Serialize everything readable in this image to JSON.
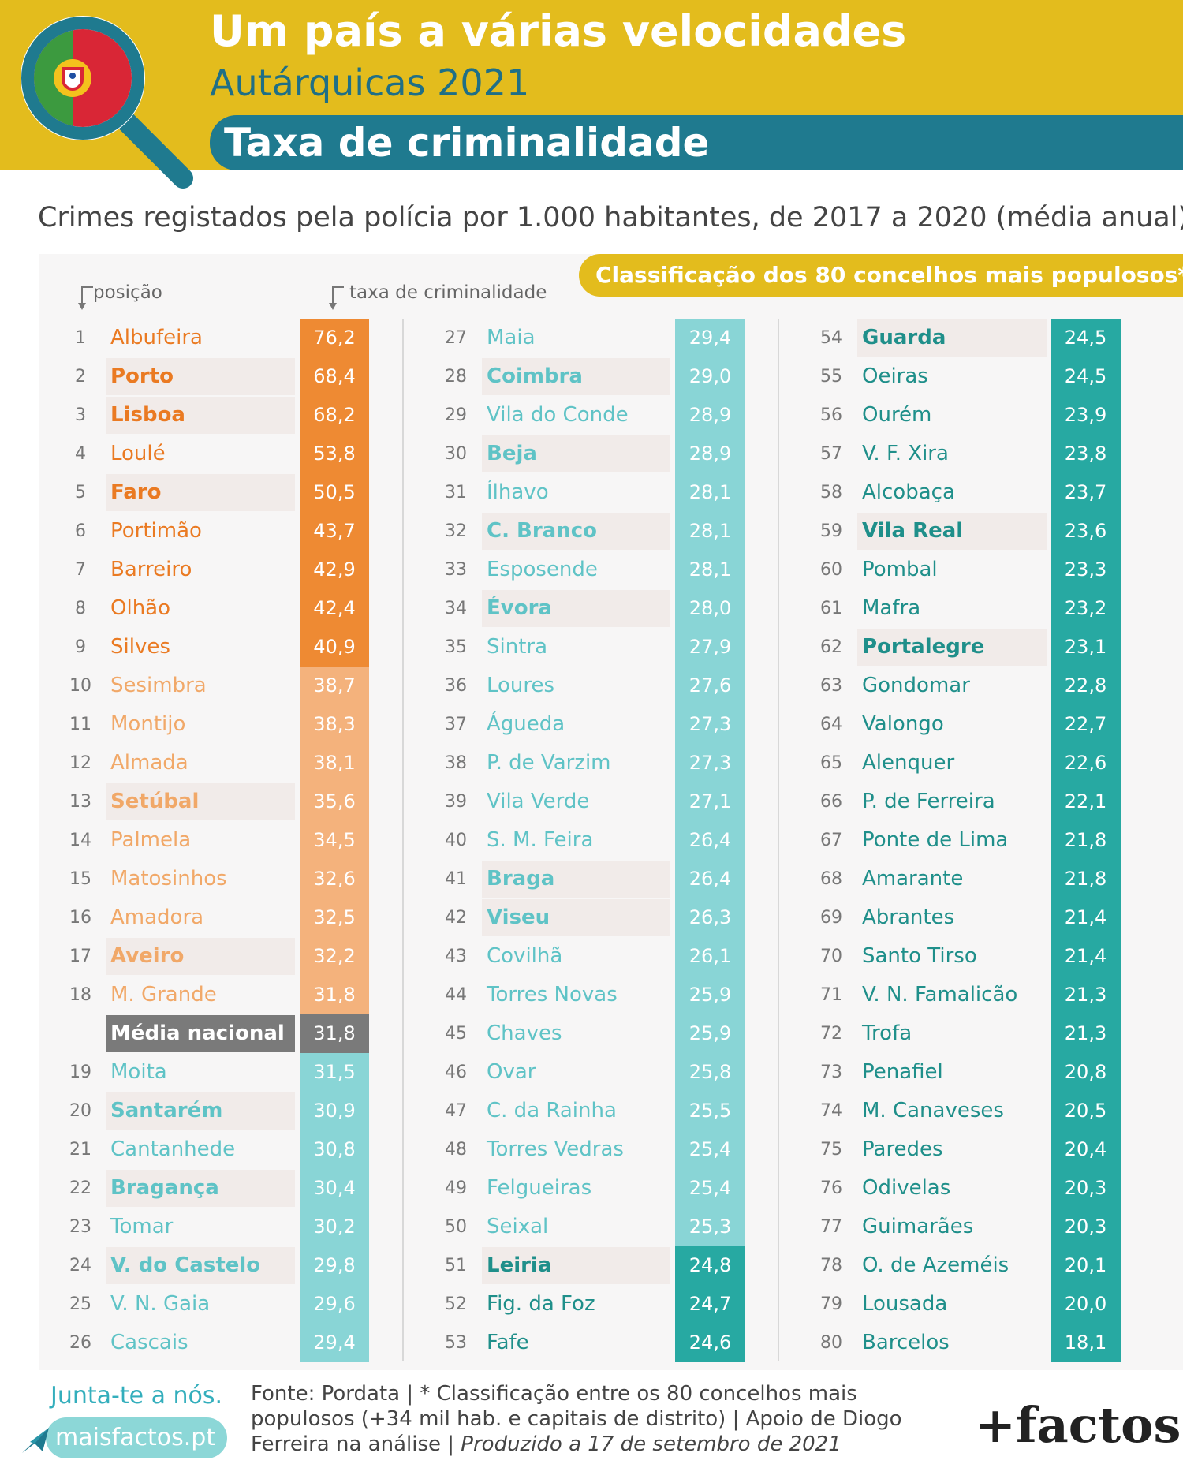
{
  "header": {
    "title": "Um país a várias velocidades",
    "subtitle": "Autárquicas 2021",
    "topic": "Taxa de criminalidade"
  },
  "description": "Crimes registados pela polícia por 1.000 habitantes, de 2017 a 2020 (média anual)",
  "ranking_badge": "Classificação dos 80 concelhos mais populosos*",
  "columns": {
    "position_label": "posição",
    "rate_label": "taxa de criminalidade"
  },
  "colors": {
    "header_yellow": "#e3bc1d",
    "topic_teal": "#1f7a8f",
    "orange_dark": "#ee8a33",
    "orange_light": "#f4b27c",
    "national_grey": "#7a7a7a",
    "teal_light": "#89d5d6",
    "teal_dark": "#27a9a2"
  },
  "chart_data": {
    "type": "table",
    "rows": [
      {
        "rank": "1",
        "name": "Albufeira",
        "value": "76,2",
        "district_capital": false,
        "tier": "orange-dark"
      },
      {
        "rank": "2",
        "name": "Porto",
        "value": "68,4",
        "district_capital": true,
        "tier": "orange-dark"
      },
      {
        "rank": "3",
        "name": "Lisboa",
        "value": "68,2",
        "district_capital": true,
        "tier": "orange-dark"
      },
      {
        "rank": "4",
        "name": "Loulé",
        "value": "53,8",
        "district_capital": false,
        "tier": "orange-dark"
      },
      {
        "rank": "5",
        "name": "Faro",
        "value": "50,5",
        "district_capital": true,
        "tier": "orange-dark"
      },
      {
        "rank": "6",
        "name": "Portimão",
        "value": "43,7",
        "district_capital": false,
        "tier": "orange-dark"
      },
      {
        "rank": "7",
        "name": "Barreiro",
        "value": "42,9",
        "district_capital": false,
        "tier": "orange-dark"
      },
      {
        "rank": "8",
        "name": "Olhão",
        "value": "42,4",
        "district_capital": false,
        "tier": "orange-dark"
      },
      {
        "rank": "9",
        "name": "Silves",
        "value": "40,9",
        "district_capital": false,
        "tier": "orange-dark"
      },
      {
        "rank": "10",
        "name": "Sesimbra",
        "value": "38,7",
        "district_capital": false,
        "tier": "orange-light"
      },
      {
        "rank": "11",
        "name": "Montijo",
        "value": "38,3",
        "district_capital": false,
        "tier": "orange-light"
      },
      {
        "rank": "12",
        "name": "Almada",
        "value": "38,1",
        "district_capital": false,
        "tier": "orange-light"
      },
      {
        "rank": "13",
        "name": "Setúbal",
        "value": "35,6",
        "district_capital": true,
        "tier": "orange-light"
      },
      {
        "rank": "14",
        "name": "Palmela",
        "value": "34,5",
        "district_capital": false,
        "tier": "orange-light"
      },
      {
        "rank": "15",
        "name": "Matosinhos",
        "value": "32,6",
        "district_capital": false,
        "tier": "orange-light"
      },
      {
        "rank": "16",
        "name": "Amadora",
        "value": "32,5",
        "district_capital": false,
        "tier": "orange-light"
      },
      {
        "rank": "17",
        "name": "Aveiro",
        "value": "32,2",
        "district_capital": true,
        "tier": "orange-light"
      },
      {
        "rank": "18",
        "name": "M. Grande",
        "value": "31,8",
        "district_capital": false,
        "tier": "orange-light"
      },
      {
        "rank": "",
        "name": "Média nacional",
        "value": "31,8",
        "district_capital": false,
        "tier": "national"
      },
      {
        "rank": "19",
        "name": "Moita",
        "value": "31,5",
        "district_capital": false,
        "tier": "teal-light"
      },
      {
        "rank": "20",
        "name": "Santarém",
        "value": "30,9",
        "district_capital": true,
        "tier": "teal-light"
      },
      {
        "rank": "21",
        "name": "Cantanhede",
        "value": "30,8",
        "district_capital": false,
        "tier": "teal-light"
      },
      {
        "rank": "22",
        "name": "Bragança",
        "value": "30,4",
        "district_capital": true,
        "tier": "teal-light"
      },
      {
        "rank": "23",
        "name": "Tomar",
        "value": "30,2",
        "district_capital": false,
        "tier": "teal-light"
      },
      {
        "rank": "24",
        "name": "V. do Castelo",
        "value": "29,8",
        "district_capital": true,
        "tier": "teal-light"
      },
      {
        "rank": "25",
        "name": "V. N. Gaia",
        "value": "29,6",
        "district_capital": false,
        "tier": "teal-light"
      },
      {
        "rank": "26",
        "name": "Cascais",
        "value": "29,4",
        "district_capital": false,
        "tier": "teal-light"
      },
      {
        "rank": "27",
        "name": "Maia",
        "value": "29,4",
        "district_capital": false,
        "tier": "teal-light"
      },
      {
        "rank": "28",
        "name": "Coimbra",
        "value": "29,0",
        "district_capital": true,
        "tier": "teal-light"
      },
      {
        "rank": "29",
        "name": "Vila do Conde",
        "value": "28,9",
        "district_capital": false,
        "tier": "teal-light"
      },
      {
        "rank": "30",
        "name": "Beja",
        "value": "28,9",
        "district_capital": true,
        "tier": "teal-light"
      },
      {
        "rank": "31",
        "name": "Ílhavo",
        "value": "28,1",
        "district_capital": false,
        "tier": "teal-light"
      },
      {
        "rank": "32",
        "name": "C. Branco",
        "value": "28,1",
        "district_capital": true,
        "tier": "teal-light"
      },
      {
        "rank": "33",
        "name": "Esposende",
        "value": "28,1",
        "district_capital": false,
        "tier": "teal-light"
      },
      {
        "rank": "34",
        "name": "Évora",
        "value": "28,0",
        "district_capital": true,
        "tier": "teal-light"
      },
      {
        "rank": "35",
        "name": "Sintra",
        "value": "27,9",
        "district_capital": false,
        "tier": "teal-light"
      },
      {
        "rank": "36",
        "name": "Loures",
        "value": "27,6",
        "district_capital": false,
        "tier": "teal-light"
      },
      {
        "rank": "37",
        "name": "Águeda",
        "value": "27,3",
        "district_capital": false,
        "tier": "teal-light"
      },
      {
        "rank": "38",
        "name": "P.  de Varzim",
        "value": "27,3",
        "district_capital": false,
        "tier": "teal-light"
      },
      {
        "rank": "39",
        "name": "Vila Verde",
        "value": "27,1",
        "district_capital": false,
        "tier": "teal-light"
      },
      {
        "rank": "40",
        "name": "S. M. Feira",
        "value": "26,4",
        "district_capital": false,
        "tier": "teal-light"
      },
      {
        "rank": "41",
        "name": "Braga",
        "value": "26,4",
        "district_capital": true,
        "tier": "teal-light"
      },
      {
        "rank": "42",
        "name": "Viseu",
        "value": "26,3",
        "district_capital": true,
        "tier": "teal-light"
      },
      {
        "rank": "43",
        "name": "Covilhã",
        "value": "26,1",
        "district_capital": false,
        "tier": "teal-light"
      },
      {
        "rank": "44",
        "name": "Torres Novas",
        "value": "25,9",
        "district_capital": false,
        "tier": "teal-light"
      },
      {
        "rank": "45",
        "name": "Chaves",
        "value": "25,9",
        "district_capital": false,
        "tier": "teal-light"
      },
      {
        "rank": "46",
        "name": "Ovar",
        "value": "25,8",
        "district_capital": false,
        "tier": "teal-light"
      },
      {
        "rank": "47",
        "name": "C. da Rainha",
        "value": "25,5",
        "district_capital": false,
        "tier": "teal-light"
      },
      {
        "rank": "48",
        "name": "Torres Vedras",
        "value": "25,4",
        "district_capital": false,
        "tier": "teal-light"
      },
      {
        "rank": "49",
        "name": "Felgueiras",
        "value": "25,4",
        "district_capital": false,
        "tier": "teal-light"
      },
      {
        "rank": "50",
        "name": "Seixal",
        "value": "25,3",
        "district_capital": false,
        "tier": "teal-light"
      },
      {
        "rank": "51",
        "name": "Leiria",
        "value": "24,8",
        "district_capital": true,
        "tier": "teal-dark"
      },
      {
        "rank": "52",
        "name": "Fig. da Foz",
        "value": "24,7",
        "district_capital": false,
        "tier": "teal-dark"
      },
      {
        "rank": "53",
        "name": "Fafe",
        "value": "24,6",
        "district_capital": false,
        "tier": "teal-dark"
      },
      {
        "rank": "54",
        "name": "Guarda",
        "value": "24,5",
        "district_capital": true,
        "tier": "teal-dark"
      },
      {
        "rank": "55",
        "name": "Oeiras",
        "value": "24,5",
        "district_capital": false,
        "tier": "teal-dark"
      },
      {
        "rank": "56",
        "name": "Ourém",
        "value": "23,9",
        "district_capital": false,
        "tier": "teal-dark"
      },
      {
        "rank": "57",
        "name": "V. F. Xira",
        "value": "23,8",
        "district_capital": false,
        "tier": "teal-dark"
      },
      {
        "rank": "58",
        "name": "Alcobaça",
        "value": "23,7",
        "district_capital": false,
        "tier": "teal-dark"
      },
      {
        "rank": "59",
        "name": "Vila Real",
        "value": "23,6",
        "district_capital": true,
        "tier": "teal-dark"
      },
      {
        "rank": "60",
        "name": "Pombal",
        "value": "23,3",
        "district_capital": false,
        "tier": "teal-dark"
      },
      {
        "rank": "61",
        "name": "Mafra",
        "value": "23,2",
        "district_capital": false,
        "tier": "teal-dark"
      },
      {
        "rank": "62",
        "name": "Portalegre",
        "value": "23,1",
        "district_capital": true,
        "tier": "teal-dark"
      },
      {
        "rank": "63",
        "name": "Gondomar",
        "value": "22,8",
        "district_capital": false,
        "tier": "teal-dark"
      },
      {
        "rank": "64",
        "name": "Valongo",
        "value": "22,7",
        "district_capital": false,
        "tier": "teal-dark"
      },
      {
        "rank": "65",
        "name": "Alenquer",
        "value": "22,6",
        "district_capital": false,
        "tier": "teal-dark"
      },
      {
        "rank": "66",
        "name": "P. de Ferreira",
        "value": "22,1",
        "district_capital": false,
        "tier": "teal-dark"
      },
      {
        "rank": "67",
        "name": "Ponte de Lima",
        "value": "21,8",
        "district_capital": false,
        "tier": "teal-dark"
      },
      {
        "rank": "68",
        "name": "Amarante",
        "value": "21,8",
        "district_capital": false,
        "tier": "teal-dark"
      },
      {
        "rank": "69",
        "name": "Abrantes",
        "value": "21,4",
        "district_capital": false,
        "tier": "teal-dark"
      },
      {
        "rank": "70",
        "name": "Santo Tirso",
        "value": "21,4",
        "district_capital": false,
        "tier": "teal-dark"
      },
      {
        "rank": "71",
        "name": "V. N. Famalicão",
        "value": "21,3",
        "district_capital": false,
        "tier": "teal-dark"
      },
      {
        "rank": "72",
        "name": "Trofa",
        "value": "21,3",
        "district_capital": false,
        "tier": "teal-dark"
      },
      {
        "rank": "73",
        "name": "Penafiel",
        "value": "20,8",
        "district_capital": false,
        "tier": "teal-dark"
      },
      {
        "rank": "74",
        "name": "M. Canaveses",
        "value": "20,5",
        "district_capital": false,
        "tier": "teal-dark"
      },
      {
        "rank": "75",
        "name": "Paredes",
        "value": "20,4",
        "district_capital": false,
        "tier": "teal-dark"
      },
      {
        "rank": "76",
        "name": "Odivelas",
        "value": "20,3",
        "district_capital": false,
        "tier": "teal-dark"
      },
      {
        "rank": "77",
        "name": "Guimarães",
        "value": "20,3",
        "district_capital": false,
        "tier": "teal-dark"
      },
      {
        "rank": "78",
        "name": "O. de Azeméis",
        "value": "20,1",
        "district_capital": false,
        "tier": "teal-dark"
      },
      {
        "rank": "79",
        "name": "Lousada",
        "value": "20,0",
        "district_capital": false,
        "tier": "teal-dark"
      },
      {
        "rank": "80",
        "name": "Barcelos",
        "value": "18,1",
        "district_capital": false,
        "tier": "teal-dark"
      }
    ]
  },
  "footer": {
    "join_text": "Junta-te a nós.",
    "website": "maisfactos.pt",
    "source_line1": "Fonte: Pordata | * Classificação entre os 80 concelhos mais",
    "source_line2": "populosos (+34 mil hab. e capitais de distrito) | Apoio de Diogo",
    "source_line3a": "Ferreira na análise | ",
    "source_line3b": "Produzido a 17 de setembro de 2021",
    "brand": "+factos",
    "icons": [
      "magnifier-portugal-flag-icon",
      "paper-plane-icon",
      "down-arrow-icon"
    ]
  }
}
